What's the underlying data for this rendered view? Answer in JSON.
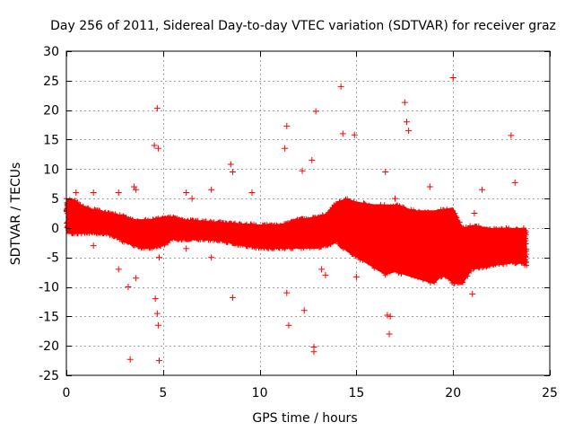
{
  "chart_data": {
    "type": "scatter",
    "title": "Day 256 of 2011, Sidereal Day-to-day VTEC variation (SDTVAR) for receiver graz",
    "xlabel": "GPS time / hours",
    "ylabel": "SDTVAR / TECUs",
    "xlim": [
      0,
      25
    ],
    "ylim": [
      -25,
      30
    ],
    "xticks": [
      0,
      5,
      10,
      15,
      20,
      25
    ],
    "yticks": [
      -25,
      -20,
      -15,
      -10,
      -5,
      0,
      5,
      10,
      15,
      20,
      25,
      30
    ],
    "xtick_labels": [
      "0",
      "5",
      "10",
      "15",
      "20",
      "25"
    ],
    "ytick_labels": [
      "-25",
      "-20",
      "-15",
      "-10",
      "-5",
      "0",
      "5",
      "10",
      "15",
      "20",
      "25",
      "30"
    ],
    "grid": true,
    "marker": "+",
    "color": "#ff0000",
    "band": {
      "note": "dense continuous scatter envelope (approximate upper/lower bounds vs time)",
      "x": [
        0.0,
        0.3,
        1.0,
        2.0,
        2.5,
        3.0,
        3.5,
        4.0,
        4.5,
        5.0,
        5.5,
        6.0,
        7.0,
        8.0,
        9.0,
        10.0,
        11.0,
        12.0,
        13.0,
        13.5,
        14.0,
        14.5,
        15.0,
        15.5,
        16.0,
        16.5,
        17.0,
        17.5,
        18.0,
        18.5,
        19.0,
        19.5,
        20.0,
        20.5,
        21.0,
        22.0,
        23.0,
        23.5,
        23.8
      ],
      "upper": [
        5.0,
        5.0,
        3.5,
        2.8,
        2.5,
        2.0,
        1.5,
        1.5,
        1.5,
        2.0,
        2.0,
        1.5,
        1.2,
        1.0,
        0.8,
        0.6,
        0.5,
        1.5,
        2.0,
        2.5,
        4.5,
        5.0,
        4.5,
        4.2,
        4.0,
        4.0,
        4.0,
        3.5,
        3.0,
        3.0,
        3.0,
        3.2,
        3.5,
        0.0,
        0.5,
        0.0,
        0.0,
        0.0,
        0.0
      ],
      "lower": [
        -1.0,
        -1.0,
        -1.0,
        -1.0,
        -1.5,
        -2.5,
        -3.0,
        -3.5,
        -3.5,
        -3.0,
        -2.0,
        -2.0,
        -2.0,
        -2.2,
        -3.0,
        -3.5,
        -3.5,
        -3.5,
        -3.5,
        -3.0,
        -2.5,
        -4.0,
        -5.0,
        -6.0,
        -7.0,
        -8.0,
        -7.5,
        -8.0,
        -8.5,
        -9.0,
        -9.5,
        -8.0,
        -9.5,
        -9.5,
        -7.0,
        -6.5,
        -6.0,
        -6.0,
        -6.5
      ]
    },
    "outliers": {
      "x": [
        0.5,
        1.4,
        1.4,
        2.7,
        2.7,
        3.2,
        3.3,
        3.5,
        3.6,
        3.6,
        4.55,
        4.6,
        4.7,
        4.7,
        4.75,
        4.75,
        4.8,
        4.8,
        6.2,
        6.2,
        6.5,
        7.5,
        7.5,
        8.5,
        8.6,
        8.6,
        9.6,
        11.3,
        11.4,
        11.4,
        11.5,
        12.2,
        12.3,
        12.7,
        12.8,
        12.8,
        12.9,
        13.2,
        13.4,
        14.2,
        14.3,
        14.9,
        15.0,
        16.5,
        16.6,
        16.7,
        16.75,
        17.0,
        17.5,
        17.6,
        17.7,
        18.8,
        20.0,
        21.0,
        21.1,
        21.5,
        23.0,
        23.2
      ],
      "y": [
        6.0,
        6.0,
        -3.0,
        6.0,
        -7.0,
        -10.0,
        -22.3,
        7.0,
        6.5,
        -8.5,
        14.0,
        -12.0,
        -14.5,
        20.3,
        13.5,
        -16.5,
        -22.5,
        -5.0,
        6.0,
        -3.5,
        5.0,
        6.5,
        -5.0,
        10.8,
        9.5,
        -11.8,
        6.0,
        13.5,
        17.3,
        -11.0,
        -16.5,
        9.7,
        -14.0,
        11.5,
        -20.2,
        -21.0,
        19.8,
        -7.0,
        -8.0,
        24.0,
        16.0,
        15.8,
        -8.3,
        9.5,
        -14.8,
        -18.0,
        -15.0,
        5.0,
        21.3,
        18.0,
        16.5,
        7.0,
        25.5,
        -11.2,
        2.5,
        6.5,
        15.7,
        7.7
      ]
    }
  }
}
